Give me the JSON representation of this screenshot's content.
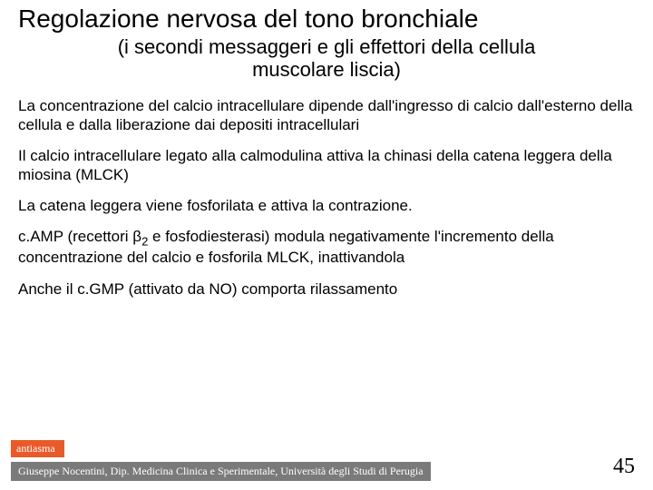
{
  "title": "Regolazione nervosa del tono bronchiale",
  "subtitle": "(i secondi messaggeri e gli effettori della cellula muscolare liscia)",
  "paragraphs": {
    "p1": "La concentrazione del calcio intracellulare dipende dall'ingresso di calcio dall'esterno della cellula e dalla liberazione dai depositi intracellulari",
    "p2": "Il calcio intracellulare legato alla calmodulina attiva la chinasi della catena leggera della miosina (MLCK)",
    "p3": "La catena leggera viene fosforilata e attiva la contrazione.",
    "p4a": "c.AMP (recettori β",
    "p4sub": "2",
    "p4b": " e fosfodiesterasi) modula negativamente l'incremento della concentrazione del calcio e fosforila MLCK, inattivandola",
    "p5": "Anche il c.GMP (attivato da NO) comporta rilassamento"
  },
  "footer": {
    "tag": "antiasma",
    "bar": "Giuseppe Nocentini, Dip. Medicina Clinica e Sperimentale, Università degli Studi di Perugia"
  },
  "page_number": "45",
  "colors": {
    "tag_bg": "#e85a2a",
    "bar_bg": "#7a7a7a",
    "text": "#000000",
    "background": "#ffffff"
  }
}
